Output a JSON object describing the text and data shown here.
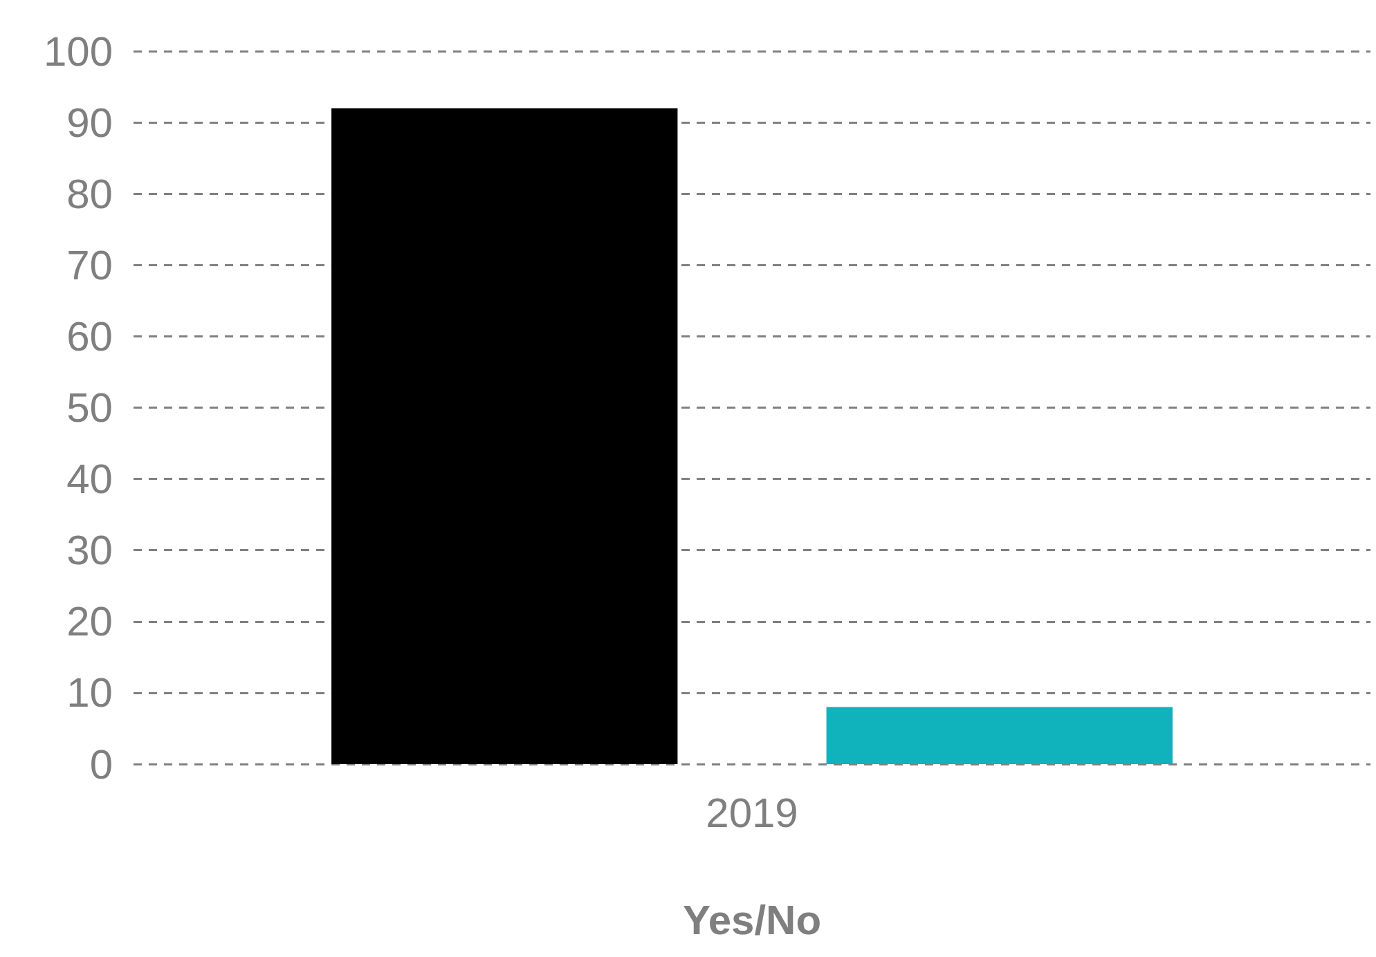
{
  "chart_data": {
    "type": "bar",
    "xlabel": "Yes/No",
    "categories": [
      "2019"
    ],
    "series": [
      {
        "color": "#000000",
        "values": [
          92
        ]
      },
      {
        "color": "#10b2bb",
        "values": [
          8
        ]
      }
    ],
    "ylim": [
      0,
      100
    ],
    "yticks": [
      0,
      10,
      20,
      30,
      40,
      50,
      60,
      70,
      80,
      90,
      100
    ],
    "grid": "y"
  }
}
